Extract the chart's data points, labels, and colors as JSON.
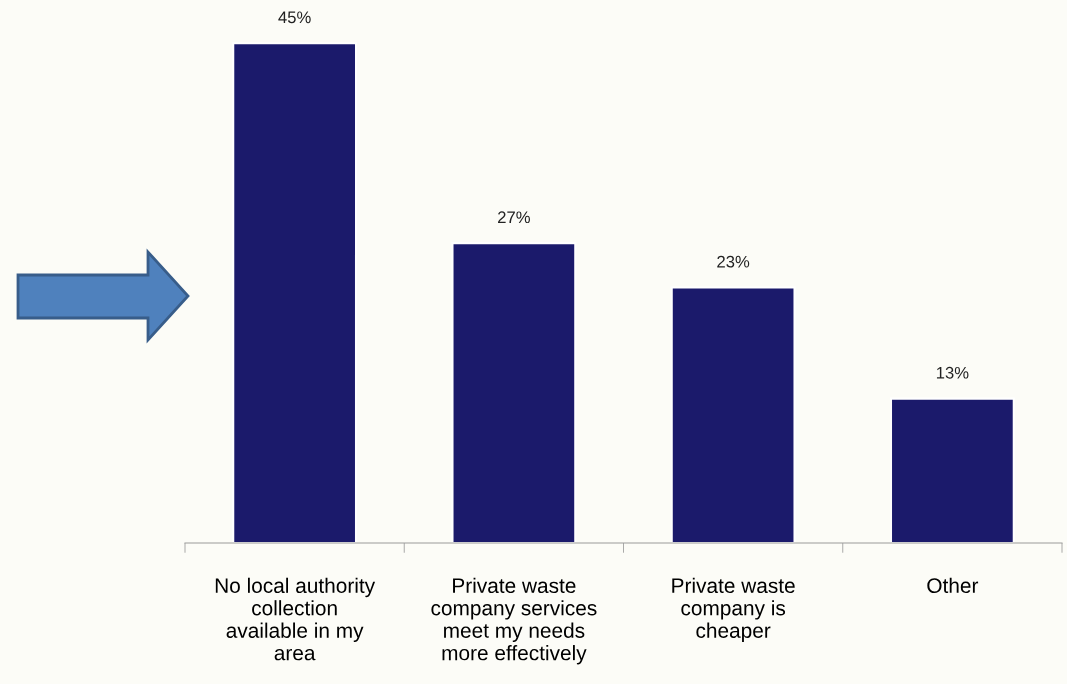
{
  "chart_data": {
    "type": "bar",
    "categories": [
      "No local authority\ncollection\navailable in my\narea",
      "Private waste\ncompany services\nmeet my needs\nmore effectively",
      "Private waste\ncompany is\ncheaper",
      "Other"
    ],
    "values": [
      45,
      27,
      23,
      13
    ],
    "value_labels": [
      "45%",
      "27%",
      "23%",
      "13%"
    ],
    "color": "#1b1a6b",
    "grid": false,
    "legend": false
  }
}
